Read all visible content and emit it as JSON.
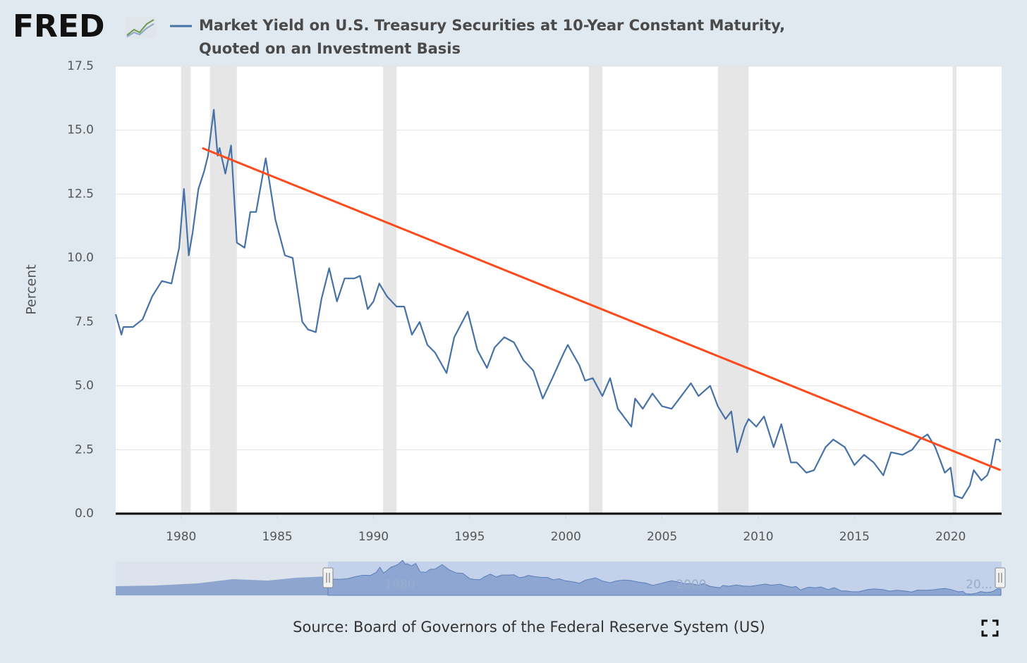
{
  "chart_data": {
    "type": "line",
    "logo": "FRED",
    "title": [
      "Market Yield on U.S. Treasury Securities at 10-Year Constant Maturity,",
      "Quoted on an Investment Basis"
    ],
    "y_label": "Percent",
    "source": "Source: Board of Governors of the Federal Reserve System (US)",
    "xlim": [
      1976.6,
      2022.65
    ],
    "ylim": [
      0,
      17.5
    ],
    "xticks": [
      1980,
      1985,
      1990,
      1995,
      2000,
      2005,
      2010,
      2015,
      2020
    ],
    "yticks": [
      {
        "value": 0,
        "label": "0.0"
      },
      2.5,
      {
        "value": 5,
        "label": "5.0"
      },
      7.5,
      {
        "value": 10,
        "label": "10.0"
      },
      12.5,
      {
        "value": 15,
        "label": "15.0"
      },
      17.5
    ],
    "grid": true,
    "recessions": [
      [
        1980.0,
        1980.5
      ],
      [
        1981.5,
        1982.9
      ],
      [
        1990.5,
        1991.2
      ],
      [
        2001.2,
        2001.9
      ],
      [
        2007.9,
        2009.5
      ],
      [
        2020.1,
        2020.3
      ]
    ],
    "recession_color": "#e6e6e6",
    "trend": {
      "x": [
        1981.1,
        2022.6
      ],
      "y": [
        14.3,
        1.7
      ],
      "color": "#ff4a1c"
    },
    "navigator_labels": [
      "1980",
      "2000",
      "20..."
    ],
    "x": [
      1976.6,
      1976.9,
      1977.0,
      1977.5,
      1978.0,
      1978.5,
      1979.0,
      1979.5,
      1979.9,
      1980.15,
      1980.4,
      1980.6,
      1980.9,
      1981.2,
      1981.4,
      1981.7,
      1981.9,
      1982.0,
      1982.3,
      1982.6,
      1982.9,
      1983.3,
      1983.6,
      1983.9,
      1984.4,
      1984.9,
      1985.4,
      1985.8,
      1986.3,
      1986.6,
      1987.0,
      1987.3,
      1987.7,
      1988.1,
      1988.5,
      1989.0,
      1989.3,
      1989.7,
      1990.0,
      1990.3,
      1990.7,
      1991.2,
      1991.6,
      1992.0,
      1992.4,
      1992.8,
      1993.2,
      1993.8,
      1994.2,
      1994.9,
      1995.4,
      1995.9,
      1996.3,
      1996.8,
      1997.3,
      1997.8,
      1998.3,
      1998.8,
      1999.3,
      1999.9,
      2000.1,
      2000.7,
      2001.0,
      2001.4,
      2001.9,
      2002.3,
      2002.7,
      2003.4,
      2003.6,
      2004.0,
      2004.5,
      2005.0,
      2005.5,
      2006.0,
      2006.5,
      2006.9,
      2007.5,
      2007.9,
      2008.3,
      2008.6,
      2008.9,
      2009.3,
      2009.5,
      2009.9,
      2010.3,
      2010.8,
      2011.2,
      2011.7,
      2012.0,
      2012.5,
      2012.9,
      2013.5,
      2013.9,
      2014.5,
      2015.0,
      2015.5,
      2016.0,
      2016.5,
      2016.9,
      2017.5,
      2018.0,
      2018.4,
      2018.8,
      2019.2,
      2019.7,
      2020.0,
      2020.2,
      2020.6,
      2021.0,
      2021.2,
      2021.6,
      2021.9,
      2022.1,
      2022.35,
      2022.5,
      2022.6
    ],
    "series": [
      {
        "name": "Market Yield on U.S. Treasury Securities at 10-Year Constant Maturity, Quoted on an Investment Basis",
        "color": "#4572a7",
        "values": [
          7.8,
          7.0,
          7.3,
          7.3,
          7.6,
          8.5,
          9.1,
          9.0,
          10.4,
          12.7,
          10.1,
          11.0,
          12.7,
          13.4,
          14.0,
          15.8,
          14.0,
          14.3,
          13.3,
          14.4,
          10.6,
          10.4,
          11.8,
          11.8,
          13.9,
          11.5,
          10.1,
          10.0,
          7.5,
          7.2,
          7.1,
          8.4,
          9.6,
          8.3,
          9.2,
          9.2,
          9.3,
          8.0,
          8.3,
          9.0,
          8.5,
          8.1,
          8.1,
          7.0,
          7.5,
          6.6,
          6.3,
          5.5,
          6.9,
          7.9,
          6.4,
          5.7,
          6.5,
          6.9,
          6.7,
          6.0,
          5.6,
          4.5,
          5.3,
          6.3,
          6.6,
          5.8,
          5.2,
          5.3,
          4.6,
          5.3,
          4.1,
          3.4,
          4.5,
          4.1,
          4.7,
          4.2,
          4.1,
          4.6,
          5.1,
          4.6,
          5.0,
          4.2,
          3.7,
          4.0,
          2.4,
          3.4,
          3.7,
          3.4,
          3.8,
          2.6,
          3.5,
          2.0,
          2.0,
          1.6,
          1.7,
          2.6,
          2.9,
          2.6,
          1.9,
          2.3,
          2.0,
          1.5,
          2.4,
          2.3,
          2.5,
          2.9,
          3.1,
          2.6,
          1.6,
          1.8,
          0.7,
          0.6,
          1.1,
          1.7,
          1.3,
          1.5,
          1.9,
          2.9,
          2.9,
          2.8
        ]
      }
    ]
  }
}
